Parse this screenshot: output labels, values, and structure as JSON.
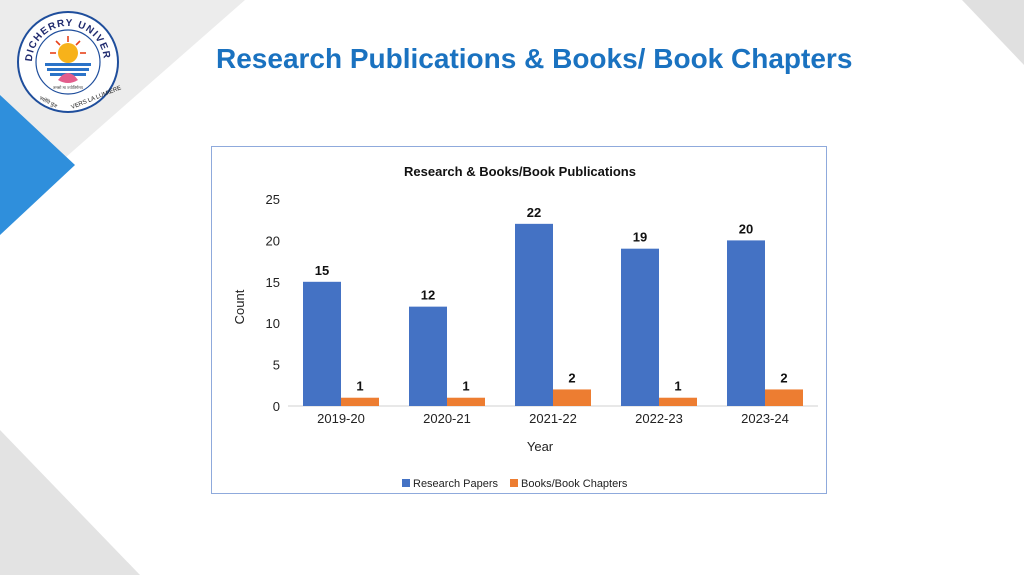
{
  "slide": {
    "title": "Research Publications & Books/ Book Chapters",
    "logo": {
      "ring_text": "PONDICHERRY UNIVERSITY",
      "motto_hindi": "तमसो मा ज्योतिर्गमय",
      "motto_left": "ज्योति पुंज",
      "motto_right": "VERS LA LUMIÈRE"
    },
    "colors": {
      "accent_blue": "#1a72c0",
      "triangle_blue": "#2f8fdc"
    }
  },
  "chart_data": {
    "type": "bar",
    "title": "Research & Books/Book Publications",
    "xlabel": "Year",
    "ylabel": "Count",
    "categories": [
      "2019-20",
      "2020-21",
      "2021-22",
      "2022-23",
      "2023-24"
    ],
    "series": [
      {
        "name": "Research Papers",
        "values": [
          15,
          12,
          22,
          19,
          20
        ],
        "color": "#4472c4"
      },
      {
        "name": "Books/Book Chapters",
        "values": [
          1,
          1,
          2,
          1,
          2
        ],
        "color": "#ed7d31"
      }
    ],
    "ylim": [
      0,
      25
    ],
    "yticks": [
      0,
      5,
      10,
      15,
      20,
      25
    ],
    "grid": false,
    "legend": "bottom",
    "data_labels": true
  }
}
